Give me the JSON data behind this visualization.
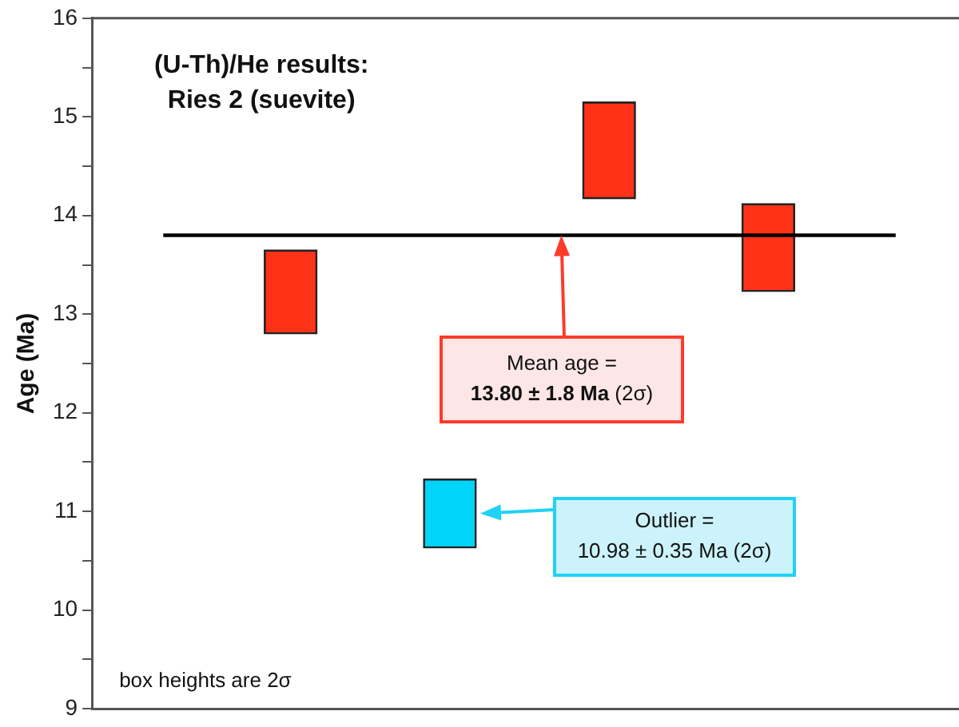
{
  "chart_data": {
    "type": "bar",
    "title": "(U-Th)/He results:\nRies 2 (suevite)",
    "ylabel": "Age (Ma)",
    "categories": [
      null,
      null,
      null,
      null
    ],
    "values": [
      0.85,
      0.7,
      0.98,
      0.89
    ],
    "base": [
      12.8,
      10.63,
      14.17,
      13.23
    ],
    "colors": [
      "#ff3218",
      "#00d4f8",
      "#ff3218",
      "#ff3218"
    ],
    "ylim": [
      9,
      16
    ],
    "yticks": [
      9,
      {
        "value": 9.5,
        "label": null
      },
      10,
      {
        "value": 10.5,
        "label": null
      },
      11,
      {
        "value": 11.5,
        "label": null
      },
      12,
      {
        "value": 12.5,
        "label": null
      },
      13,
      {
        "value": 13.5,
        "label": null
      },
      14,
      {
        "value": 14.5,
        "label": null
      },
      15,
      {
        "value": 15.5,
        "label": null
      },
      16
    ],
    "ref_lines": [
      {
        "axis": "y",
        "value": 13.8,
        "color": "#000000"
      }
    ],
    "annotations": [
      "Mean age =\n13.80 ± 1.8 Ma (2σ)",
      "Outlier =\n10.98 ± 0.35 Ma (2σ)",
      "box heights are 2σ"
    ],
    "grid": false,
    "legend": false
  }
}
